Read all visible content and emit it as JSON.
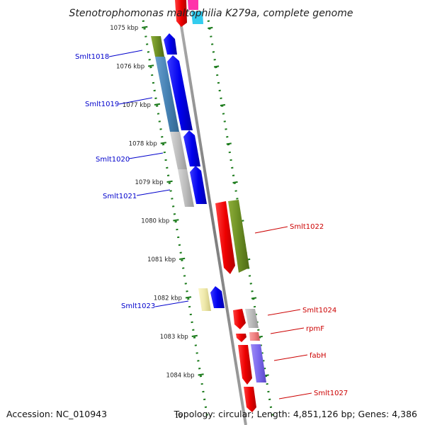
{
  "title": "Stenotrophomonas maltophilia K279a, complete genome",
  "accession": "Accession: NC_010943",
  "summary": "Topology: circular; Length: 4,851,126 bp; Genes: 4,386",
  "cut_tick_label": "10",
  "ticks": [
    "1075 kbp",
    "1076 kbp",
    "1077 kbp",
    "1078 kbp",
    "1079 kbp",
    "1080 kbp",
    "1081 kbp",
    "1082 kbp",
    "1083 kbp",
    "1084 kbp"
  ],
  "genes": [
    {
      "name": "Smlt1018",
      "strand": "reverse",
      "color": "#0000cc"
    },
    {
      "name": "Smlt1019",
      "strand": "reverse",
      "color": "#0000cc"
    },
    {
      "name": "Smlt1020",
      "strand": "reverse",
      "color": "#0000cc"
    },
    {
      "name": "Smlt1021",
      "strand": "reverse",
      "color": "#0000cc"
    },
    {
      "name": "Smlt1022",
      "strand": "forward",
      "color": "#cc0000"
    },
    {
      "name": "Smlt1023",
      "strand": "reverse",
      "color": "#0000cc"
    },
    {
      "name": "Smlt1024",
      "strand": "forward",
      "color": "#cc0000"
    },
    {
      "name": "rpmF",
      "strand": "forward",
      "color": "#cc0000"
    },
    {
      "name": "fabH",
      "strand": "forward",
      "color": "#cc0000"
    },
    {
      "name": "Smlt1027",
      "strand": "forward",
      "color": "#cc0000"
    }
  ],
  "colors": {
    "backbone": "#888888",
    "tick": "#1a7a1a",
    "forward_cds": "#ee1111",
    "reverse_cds": "#0000ee",
    "cog_green": "#6b8e23",
    "cog_steelblue": "#4682b4",
    "cog_gray": "#bbbbbb",
    "cog_yellow": "#eee8aa",
    "cog_salmon": "#f08080",
    "cog_purple": "#7b68ee"
  }
}
